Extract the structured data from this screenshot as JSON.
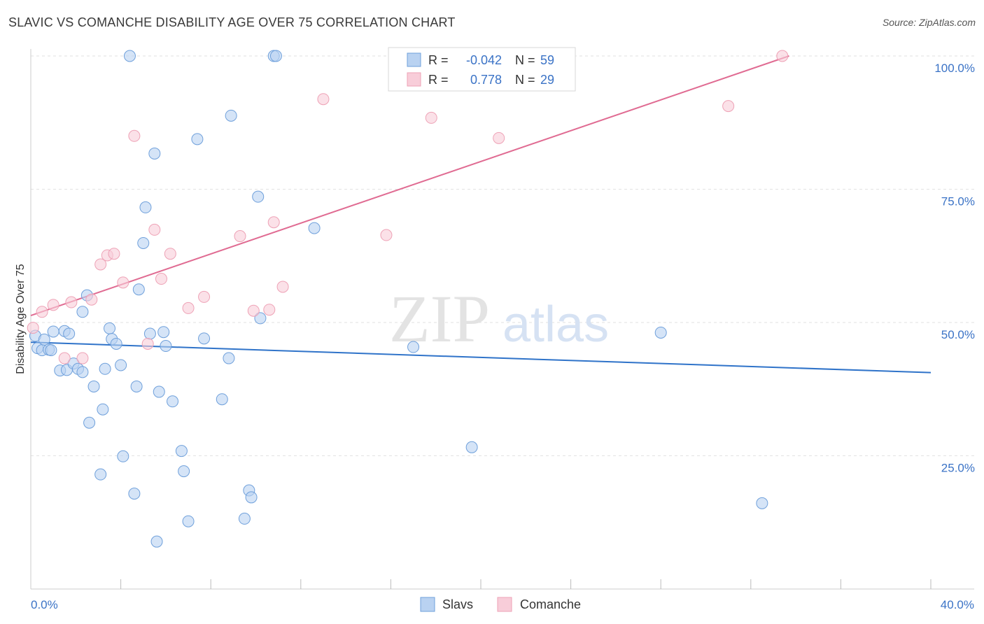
{
  "title": "SLAVIC VS COMANCHE DISABILITY AGE OVER 75 CORRELATION CHART",
  "source": "Source: ZipAtlas.com",
  "watermark": {
    "zip": "ZIP",
    "atlas": "atlas"
  },
  "chart_data": {
    "type": "scatter",
    "ylabel": "Disability Age Over 75",
    "xlim": [
      0,
      40
    ],
    "ylim": [
      0,
      100
    ],
    "x_tick_labels": [
      "0.0%",
      "40.0%"
    ],
    "y_ticks": [
      25,
      50,
      75,
      100
    ],
    "y_tick_labels": [
      "25.0%",
      "50.0%",
      "75.0%",
      "100.0%"
    ],
    "legend_stats": [
      {
        "r_label": "R =",
        "r_value": "-0.042",
        "n_label": "N =",
        "n_value": "59"
      },
      {
        "r_label": "R =",
        "r_value": "0.778",
        "n_label": "N =",
        "n_value": "29"
      }
    ],
    "series": [
      {
        "name": "Slavs",
        "color": "#6fa0db",
        "fill": "#b9d2f1",
        "trend_color": "#2f73c9",
        "trend": {
          "x0": 0,
          "y0": 46.3,
          "x1": 40,
          "y1": 40.6
        },
        "points": [
          [
            0.2,
            47.5
          ],
          [
            0.3,
            45.2
          ],
          [
            0.5,
            44.8
          ],
          [
            0.6,
            46.8
          ],
          [
            0.8,
            44.9
          ],
          [
            0.9,
            44.8
          ],
          [
            1.0,
            48.3
          ],
          [
            1.3,
            41.0
          ],
          [
            1.5,
            48.4
          ],
          [
            1.6,
            41.1
          ],
          [
            1.7,
            47.9
          ],
          [
            1.9,
            42.3
          ],
          [
            2.1,
            41.3
          ],
          [
            2.3,
            52.0
          ],
          [
            2.3,
            40.7
          ],
          [
            2.5,
            55.1
          ],
          [
            2.6,
            31.2
          ],
          [
            2.8,
            38.0
          ],
          [
            3.1,
            21.5
          ],
          [
            3.2,
            33.7
          ],
          [
            3.3,
            41.3
          ],
          [
            3.5,
            48.9
          ],
          [
            3.6,
            46.9
          ],
          [
            3.8,
            46.0
          ],
          [
            4.0,
            42.0
          ],
          [
            4.1,
            24.9
          ],
          [
            4.4,
            100.0
          ],
          [
            4.6,
            17.9
          ],
          [
            4.7,
            38.0
          ],
          [
            4.8,
            56.2
          ],
          [
            5.0,
            64.9
          ],
          [
            5.1,
            71.6
          ],
          [
            5.3,
            47.9
          ],
          [
            5.5,
            81.7
          ],
          [
            5.6,
            8.9
          ],
          [
            5.7,
            37.0
          ],
          [
            5.9,
            48.2
          ],
          [
            6.0,
            45.6
          ],
          [
            6.3,
            35.2
          ],
          [
            6.7,
            25.9
          ],
          [
            6.8,
            22.1
          ],
          [
            7.0,
            12.7
          ],
          [
            7.4,
            84.4
          ],
          [
            7.7,
            47.0
          ],
          [
            8.5,
            35.6
          ],
          [
            8.8,
            43.3
          ],
          [
            8.9,
            88.8
          ],
          [
            9.5,
            13.2
          ],
          [
            9.7,
            18.5
          ],
          [
            9.8,
            17.2
          ],
          [
            10.1,
            73.6
          ],
          [
            10.2,
            50.8
          ],
          [
            10.8,
            100.0
          ],
          [
            10.9,
            100.0
          ],
          [
            12.6,
            67.7
          ],
          [
            17.0,
            45.4
          ],
          [
            19.6,
            26.6
          ],
          [
            28.0,
            48.1
          ],
          [
            32.5,
            16.1
          ]
        ]
      },
      {
        "name": "Comanche",
        "color": "#eea2b6",
        "fill": "#f8cdd9",
        "trend_color": "#e06b92",
        "trend": {
          "x0": 0,
          "y0": 51.3,
          "x1": 33.7,
          "y1": 100.0
        },
        "points": [
          [
            0.1,
            49.0
          ],
          [
            0.5,
            52.0
          ],
          [
            1.0,
            53.3
          ],
          [
            1.5,
            43.3
          ],
          [
            1.8,
            53.8
          ],
          [
            2.3,
            43.3
          ],
          [
            2.7,
            54.3
          ],
          [
            3.1,
            60.9
          ],
          [
            3.4,
            62.6
          ],
          [
            3.7,
            62.9
          ],
          [
            4.1,
            57.5
          ],
          [
            4.6,
            85.0
          ],
          [
            5.2,
            46.0
          ],
          [
            5.5,
            67.4
          ],
          [
            5.8,
            58.2
          ],
          [
            6.2,
            62.9
          ],
          [
            7.0,
            52.7
          ],
          [
            7.7,
            54.8
          ],
          [
            9.3,
            66.2
          ],
          [
            9.9,
            52.2
          ],
          [
            10.6,
            52.4
          ],
          [
            10.8,
            68.8
          ],
          [
            11.2,
            56.7
          ],
          [
            13.0,
            91.9
          ],
          [
            15.8,
            66.4
          ],
          [
            17.8,
            88.4
          ],
          [
            20.8,
            84.6
          ],
          [
            31.0,
            90.6
          ],
          [
            33.4,
            100.0
          ]
        ]
      }
    ]
  }
}
